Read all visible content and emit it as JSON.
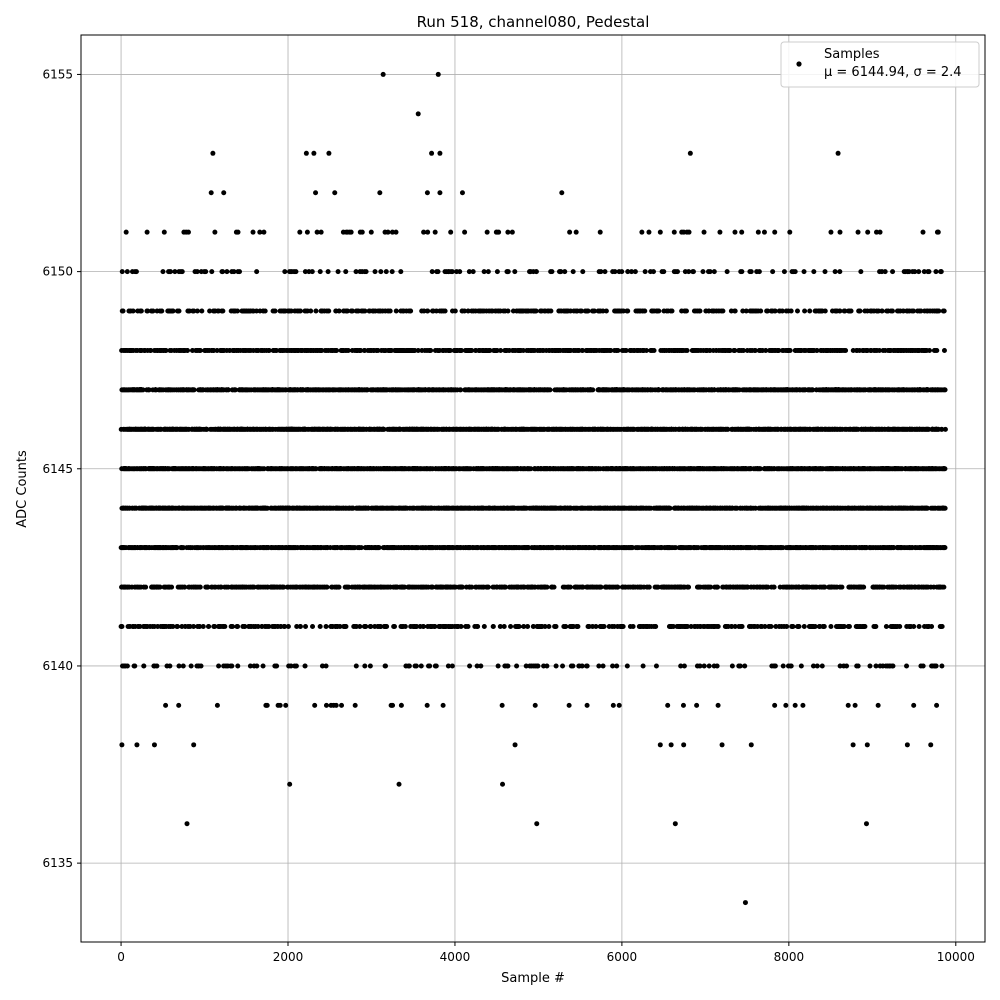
{
  "chart_data": {
    "type": "scatter",
    "title": "Run 518, channel080, Pedestal",
    "xlabel": "Sample #",
    "ylabel": "ADC Counts",
    "xlim": [
      -480,
      10350
    ],
    "ylim": [
      6133.0,
      6156.0
    ],
    "xticks": [
      0,
      2000,
      4000,
      6000,
      8000,
      10000
    ],
    "yticks": [
      6135,
      6140,
      6145,
      6150,
      6155
    ],
    "grid": true,
    "legend": {
      "position": "top-right",
      "series_name": "Samples",
      "stats_line": "μ = 6144.94, σ = 2.4"
    },
    "marker_color": "#000000",
    "series": [
      {
        "name": "Samples",
        "n_samples": 9877,
        "value_bands": [
          {
            "y": 6144,
            "frac": 0.165
          },
          {
            "y": 6145,
            "frac": 0.155
          },
          {
            "y": 6146,
            "frac": 0.155
          },
          {
            "y": 6143,
            "frac": 0.125
          },
          {
            "y": 6147,
            "frac": 0.125
          },
          {
            "y": 6142,
            "frac": 0.075
          },
          {
            "y": 6148,
            "frac": 0.075
          },
          {
            "y": 6141,
            "frac": 0.04
          },
          {
            "y": 6149,
            "frac": 0.04
          },
          {
            "y": 6140,
            "frac": 0.015
          },
          {
            "y": 6150,
            "frac": 0.015
          },
          {
            "y": 6151,
            "frac": 0.007
          },
          {
            "y": 6139,
            "frac": 0.004
          }
        ],
        "sparse_points": [
          {
            "x": 10,
            "y": 6138
          },
          {
            "x": 190,
            "y": 6138
          },
          {
            "x": 400,
            "y": 6138
          },
          {
            "x": 870,
            "y": 6138
          },
          {
            "x": 4720,
            "y": 6138
          },
          {
            "x": 6460,
            "y": 6138
          },
          {
            "x": 6590,
            "y": 6138
          },
          {
            "x": 6740,
            "y": 6138
          },
          {
            "x": 7200,
            "y": 6138
          },
          {
            "x": 7550,
            "y": 6138
          },
          {
            "x": 8770,
            "y": 6138
          },
          {
            "x": 8940,
            "y": 6138
          },
          {
            "x": 9420,
            "y": 6138
          },
          {
            "x": 9700,
            "y": 6138
          },
          {
            "x": 2020,
            "y": 6137
          },
          {
            "x": 3330,
            "y": 6137
          },
          {
            "x": 4570,
            "y": 6137
          },
          {
            "x": 790,
            "y": 6136
          },
          {
            "x": 4980,
            "y": 6136
          },
          {
            "x": 6640,
            "y": 6136
          },
          {
            "x": 8930,
            "y": 6136
          },
          {
            "x": 7480,
            "y": 6134
          },
          {
            "x": 1080,
            "y": 6152
          },
          {
            "x": 1230,
            "y": 6152
          },
          {
            "x": 2330,
            "y": 6152
          },
          {
            "x": 2560,
            "y": 6152
          },
          {
            "x": 3100,
            "y": 6152
          },
          {
            "x": 3670,
            "y": 6152
          },
          {
            "x": 3820,
            "y": 6152
          },
          {
            "x": 4090,
            "y": 6152
          },
          {
            "x": 5280,
            "y": 6152
          },
          {
            "x": 1100,
            "y": 6153
          },
          {
            "x": 2220,
            "y": 6153
          },
          {
            "x": 2310,
            "y": 6153
          },
          {
            "x": 2490,
            "y": 6153
          },
          {
            "x": 3720,
            "y": 6153
          },
          {
            "x": 3820,
            "y": 6153
          },
          {
            "x": 6820,
            "y": 6153
          },
          {
            "x": 8590,
            "y": 6153
          },
          {
            "x": 3560,
            "y": 6154
          },
          {
            "x": 3140,
            "y": 6155
          },
          {
            "x": 3800,
            "y": 6155
          }
        ]
      }
    ]
  }
}
